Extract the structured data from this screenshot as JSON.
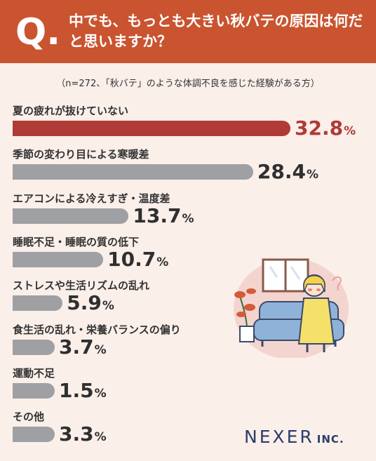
{
  "header": {
    "q_mark": "Q.",
    "title": "中でも、もっとも大きい秋バテの原因は何だと思いますか？"
  },
  "note": "（n=272、「秋バテ」のような体調不良を感じた経験がある方）",
  "brand": {
    "name": "NEXER",
    "suffix": "INC."
  },
  "colors": {
    "header_bg": "#c9542f",
    "page_bg": "#fbefea",
    "highlight": "#b03a36",
    "bar_gray": "#9fa0a3",
    "logo": "#2b3d6b"
  },
  "chart_data": {
    "type": "bar",
    "orientation": "horizontal",
    "categories": [
      "夏の疲れが抜けていない",
      "季節の変わり目による寒暖差",
      "エアコンによる冷えすぎ・温度差",
      "睡眠不足・睡眠の質の低下",
      "ストレスや生活リズムの乱れ",
      "食生活の乱れ・栄養バランスの偏り",
      "運動不足",
      "その他"
    ],
    "values": [
      32.8,
      28.4,
      13.7,
      10.7,
      5.9,
      3.7,
      1.5,
      3.3
    ],
    "value_labels": [
      "32.8",
      "28.4",
      "13.7",
      "10.7",
      "5.9",
      "3.7",
      "1.5",
      "3.3"
    ],
    "unit": "%",
    "title": "",
    "xlabel": "",
    "ylabel": ""
  }
}
